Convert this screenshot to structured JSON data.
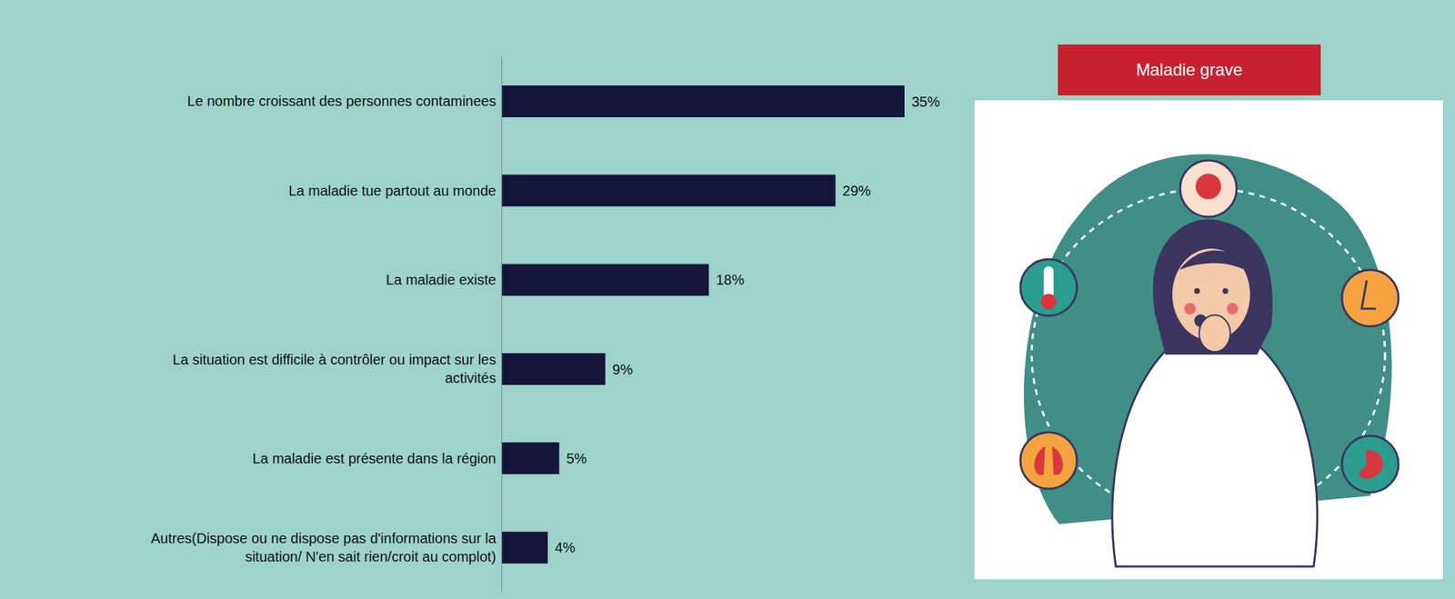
{
  "chart_data": {
    "type": "bar",
    "orientation": "horizontal",
    "categories": [
      "Le nombre croissant des personnes contaminees",
      "La maladie tue partout au monde",
      "La maladie existe",
      "La situation est difficile à contrôler ou impact sur les activités",
      "La maladie est présente dans la région",
      "Autres(Dispose ou ne dispose pas d'informations sur la situation/ N'en sait rien/croit au complot)"
    ],
    "values": [
      35,
      29,
      18,
      9,
      5,
      4
    ],
    "value_labels": [
      "35%",
      "29%",
      "18%",
      "9%",
      "5%",
      "4%"
    ],
    "color": "#15153a",
    "xlim": [
      0,
      35
    ],
    "data_labels": true,
    "tick_labels": "y",
    "grid": false
  },
  "illustration": {
    "title": "Maladie grave"
  }
}
